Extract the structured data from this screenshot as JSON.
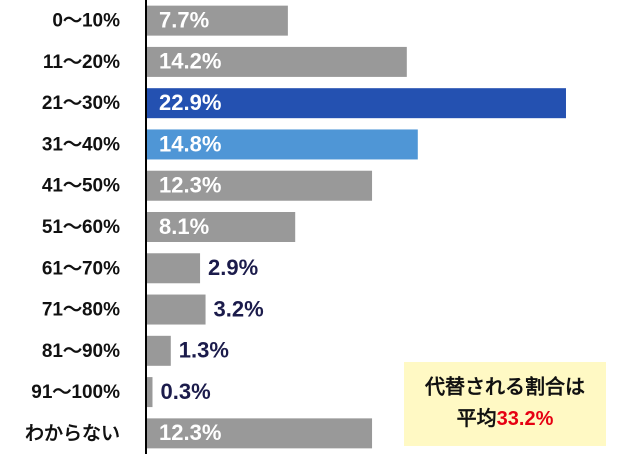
{
  "chart_data": {
    "type": "barh",
    "categories": [
      "0〜10%",
      "11〜20%",
      "21〜30%",
      "31〜40%",
      "41〜50%",
      "51〜60%",
      "61〜70%",
      "71〜80%",
      "81〜90%",
      "91〜100%",
      "わからない"
    ],
    "values": [
      7.7,
      14.2,
      22.9,
      14.8,
      12.3,
      8.1,
      2.9,
      3.2,
      1.3,
      0.3,
      12.3
    ],
    "value_labels": [
      "7.7%",
      "14.2%",
      "22.9%",
      "14.8%",
      "12.3%",
      "8.1%",
      "2.9%",
      "3.2%",
      "1.3%",
      "0.3%",
      "12.3%"
    ],
    "colors": [
      "#999999",
      "#999999",
      "#2451b1",
      "#4f96d6",
      "#999999",
      "#999999",
      "#999999",
      "#999999",
      "#999999",
      "#999999",
      "#999999"
    ],
    "xlim": [
      0,
      27
    ],
    "annotation": {
      "line1": "代替される割合は",
      "line2": "平均",
      "highlight": "33.2%",
      "highlight_color": "#e60012",
      "background": "#fff9c4"
    }
  }
}
